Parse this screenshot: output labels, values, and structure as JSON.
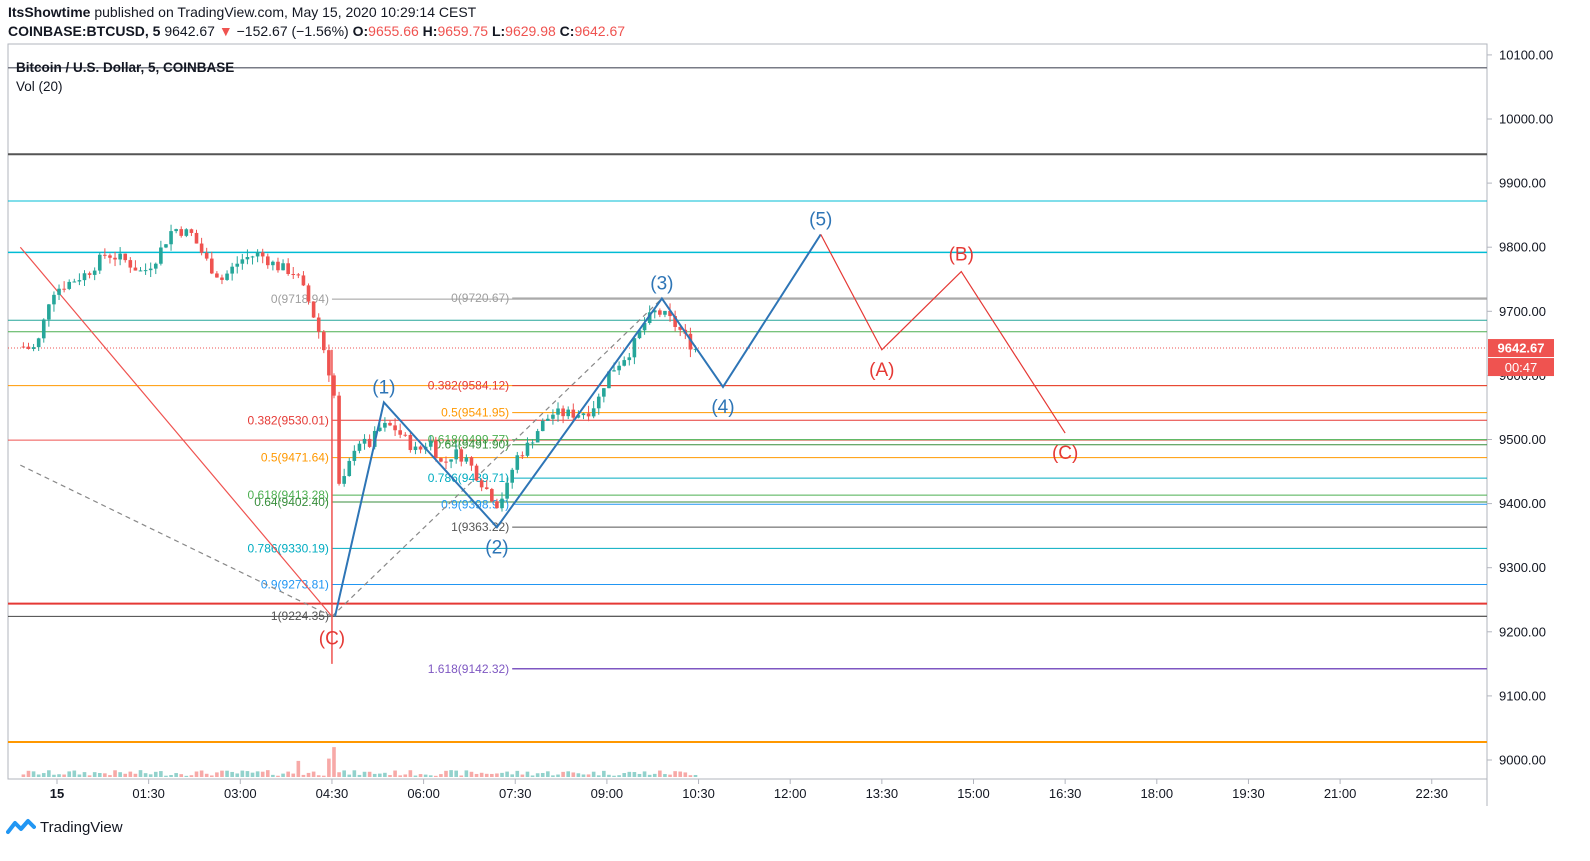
{
  "header": {
    "publisher": "ItsShowtime",
    "published_text": "published on TradingView.com, May 15, 2020 10:29:14 CEST",
    "symbol": "COINBASE:BTCUSD, 5",
    "last": "9642.67",
    "change_arrow": "▼",
    "change": "−152.67 (−1.56%)",
    "o_label": "O:",
    "o_value": "9655.66",
    "h_label": "H:",
    "h_value": "9659.75",
    "l_label": "L:",
    "l_value": "9629.98",
    "c_label": "C:",
    "c_value": "9642.67"
  },
  "legend": {
    "title": "Bitcoin / U.S. Dollar, 5, COINBASE",
    "volume": "Vol (20)"
  },
  "footer": {
    "brand": "TradingView"
  },
  "colors": {
    "up": "#26a69a",
    "down": "#ef5350",
    "wave": "#2e75b6",
    "abc": "#e53935",
    "price_tag": "#ef5350"
  },
  "chart_data": {
    "type": "candlestick",
    "title": "Bitcoin / U.S. Dollar, 5, COINBASE",
    "ylim": [
      8970,
      10120
    ],
    "x_range_hours": [
      -0.6,
      23.5
    ],
    "y_ticks": [
      "9000.00",
      "9100.00",
      "9200.00",
      "9300.00",
      "9400.00",
      "9500.00",
      "9600.00",
      "9700.00",
      "9800.00",
      "9900.00",
      "10000.00",
      "10100.00"
    ],
    "x_ticks": [
      {
        "t": 0.0,
        "label": "15"
      },
      {
        "t": 1.5,
        "label": "01:30"
      },
      {
        "t": 3.0,
        "label": "03:00"
      },
      {
        "t": 4.5,
        "label": "04:30"
      },
      {
        "t": 6.0,
        "label": "06:00"
      },
      {
        "t": 7.5,
        "label": "07:30"
      },
      {
        "t": 9.0,
        "label": "09:00"
      },
      {
        "t": 10.5,
        "label": "10:30"
      },
      {
        "t": 12.0,
        "label": "12:00"
      },
      {
        "t": 13.5,
        "label": "13:30"
      },
      {
        "t": 15.0,
        "label": "15:00"
      },
      {
        "t": 16.5,
        "label": "16:30"
      },
      {
        "t": 18.0,
        "label": "18:00"
      },
      {
        "t": 19.5,
        "label": "19:30"
      },
      {
        "t": 21.0,
        "label": "21:00"
      },
      {
        "t": 22.5,
        "label": "22:30"
      }
    ],
    "price_anchors": [
      [
        -0.55,
        9645
      ],
      [
        -0.4,
        9640
      ],
      [
        -0.3,
        9655
      ],
      [
        -0.2,
        9690
      ],
      [
        -0.1,
        9730
      ],
      [
        0.2,
        9745
      ],
      [
        0.5,
        9760
      ],
      [
        0.8,
        9790
      ],
      [
        1.1,
        9780
      ],
      [
        1.4,
        9760
      ],
      [
        1.6,
        9780
      ],
      [
        1.9,
        9830
      ],
      [
        2.2,
        9820
      ],
      [
        2.5,
        9770
      ],
      [
        2.7,
        9750
      ],
      [
        3.0,
        9780
      ],
      [
        3.3,
        9790
      ],
      [
        3.6,
        9770
      ],
      [
        3.9,
        9760
      ],
      [
        4.1,
        9720
      ],
      [
        4.25,
        9680
      ],
      [
        4.4,
        9630
      ],
      [
        4.55,
        9560
      ],
      [
        4.62,
        9420
      ],
      [
        4.72,
        9440
      ],
      [
        4.9,
        9500
      ],
      [
        5.1,
        9490
      ],
      [
        5.3,
        9520
      ],
      [
        5.5,
        9520
      ],
      [
        5.7,
        9500
      ],
      [
        5.9,
        9480
      ],
      [
        6.1,
        9500
      ],
      [
        6.3,
        9460
      ],
      [
        6.5,
        9480
      ],
      [
        6.7,
        9470
      ],
      [
        6.9,
        9440
      ],
      [
        7.05,
        9420
      ],
      [
        7.2,
        9400
      ],
      [
        7.35,
        9420
      ],
      [
        7.5,
        9470
      ],
      [
        7.7,
        9490
      ],
      [
        7.9,
        9520
      ],
      [
        8.1,
        9540
      ],
      [
        8.3,
        9540
      ],
      [
        8.5,
        9540
      ],
      [
        8.7,
        9545
      ],
      [
        8.85,
        9560
      ],
      [
        9.0,
        9600
      ],
      [
        9.2,
        9620
      ],
      [
        9.4,
        9640
      ],
      [
        9.6,
        9680
      ],
      [
        9.8,
        9700
      ],
      [
        10.0,
        9690
      ],
      [
        10.2,
        9670
      ],
      [
        10.35,
        9650
      ],
      [
        10.45,
        9642
      ]
    ],
    "volume_spikes": [
      {
        "t": 4.5,
        "value": 10.0
      },
      {
        "t": 4.55,
        "value": 2.6
      },
      {
        "t": 4.45,
        "value": 1.6
      },
      {
        "t": 3.95,
        "value": 1.4
      }
    ],
    "horizontal_levels": [
      {
        "price": 10080,
        "color": "#787b86",
        "width": 1.5
      },
      {
        "price": 9945,
        "color": "#555555",
        "width": 2
      },
      {
        "price": 9872,
        "color": "#00bcd4",
        "width": 1
      },
      {
        "price": 9792,
        "color": "#00bcd4",
        "width": 1.5
      },
      {
        "price": 9686,
        "color": "#26a69a",
        "width": 1
      },
      {
        "price": 9668,
        "color": "#4caf50",
        "width": 1
      },
      {
        "price": 9584,
        "color": "#ff9800",
        "width": 1
      },
      {
        "price": 9499,
        "color": "#ef5350",
        "width": 1
      },
      {
        "price": 9244,
        "color": "#e53935",
        "width": 2
      },
      {
        "price": 9224,
        "color": "#444444",
        "width": 1
      },
      {
        "price": 9028,
        "color": "#ff9800",
        "width": 2
      }
    ],
    "price_line": {
      "price": 9642.67,
      "label": "9642.67",
      "countdown": "00:47"
    },
    "fib_retracements": [
      {
        "from": [
          4.5,
          9224.35
        ],
        "to": [
          5.35,
          9718.94
        ],
        "label_t": 4.5,
        "levels": [
          {
            "label": "0(9718.94)",
            "price": 9718.94,
            "color": "#9e9e9e"
          },
          {
            "label": "0.382(9530.01)",
            "price": 9530.01,
            "color": "#e53935"
          },
          {
            "label": "0.5(9471.64)",
            "price": 9471.64,
            "color": "#ff9800"
          },
          {
            "label": "0.618(9413.28)",
            "price": 9413.28,
            "color": "#4caf50"
          },
          {
            "label": "0.64(9402.40)",
            "price": 9402.4,
            "color": "#388e3c"
          },
          {
            "label": "0.786(9330.19)",
            "price": 9330.19,
            "color": "#00acc1"
          },
          {
            "label": "0.9(9273.81)",
            "price": 9273.81,
            "color": "#2196f3"
          },
          {
            "label": "1(9224.35)",
            "price": 9224.35,
            "color": "#555555"
          }
        ]
      },
      {
        "from": [
          7.2,
          9363.22
        ],
        "to": [
          9.9,
          9720.67
        ],
        "label_t": 7.45,
        "levels": [
          {
            "label": "0(9720.67)",
            "price": 9720.67,
            "color": "#9e9e9e"
          },
          {
            "label": "0.382(9584.12)",
            "price": 9584.12,
            "color": "#e53935"
          },
          {
            "label": "0.5(9541.95)",
            "price": 9541.95,
            "color": "#ff9800"
          },
          {
            "label": "0.618(9499.77)",
            "price": 9499.77,
            "color": "#4caf50"
          },
          {
            "label": "0.64(9491.90)",
            "price": 9491.9,
            "color": "#388e3c"
          },
          {
            "label": "0.786(9439.71)",
            "price": 9439.71,
            "color": "#00acc1"
          },
          {
            "label": "0.9(9398.97)",
            "price": 9398.97,
            "color": "#2196f3"
          },
          {
            "label": "1(9363.22)",
            "price": 9363.22,
            "color": "#555555"
          }
        ]
      }
    ],
    "fib_extension": {
      "label": "1.618(9142.32)",
      "price": 9142.32,
      "color": "#7e57c2",
      "start_t": 7.45
    },
    "trend_lines": [
      {
        "from": [
          -0.6,
          9800
        ],
        "to": [
          4.5,
          9224
        ],
        "color": "#ef5350",
        "dash": false
      },
      {
        "from": [
          -0.6,
          9460
        ],
        "to": [
          4.5,
          9224
        ],
        "color": "#888888",
        "dash": true
      },
      {
        "from": [
          4.5,
          9224
        ],
        "to": [
          9.9,
          9720
        ],
        "color": "#888888",
        "dash": true
      }
    ],
    "elliott_wave": {
      "color": "#2e75b6",
      "points": [
        {
          "t": 4.55,
          "price": 9224,
          "label": ""
        },
        {
          "t": 5.35,
          "price": 9558,
          "label": "(1)"
        },
        {
          "t": 7.2,
          "price": 9363,
          "label": "(2)"
        },
        {
          "t": 9.9,
          "price": 9720,
          "label": "(3)"
        },
        {
          "t": 10.9,
          "price": 9582,
          "label": "(4)"
        },
        {
          "t": 12.5,
          "price": 9820,
          "label": "(5)"
        }
      ]
    },
    "abc_correction": {
      "color": "#e53935",
      "points": [
        {
          "t": 12.5,
          "price": 9820,
          "label": ""
        },
        {
          "t": 13.5,
          "price": 9640,
          "label": "(A)"
        },
        {
          "t": 14.8,
          "price": 9762,
          "label": "(B)"
        },
        {
          "t": 16.5,
          "price": 9510,
          "label": "(C)"
        }
      ],
      "prior_c": {
        "t": 4.5,
        "price": 9224,
        "label": "(C)"
      }
    }
  }
}
